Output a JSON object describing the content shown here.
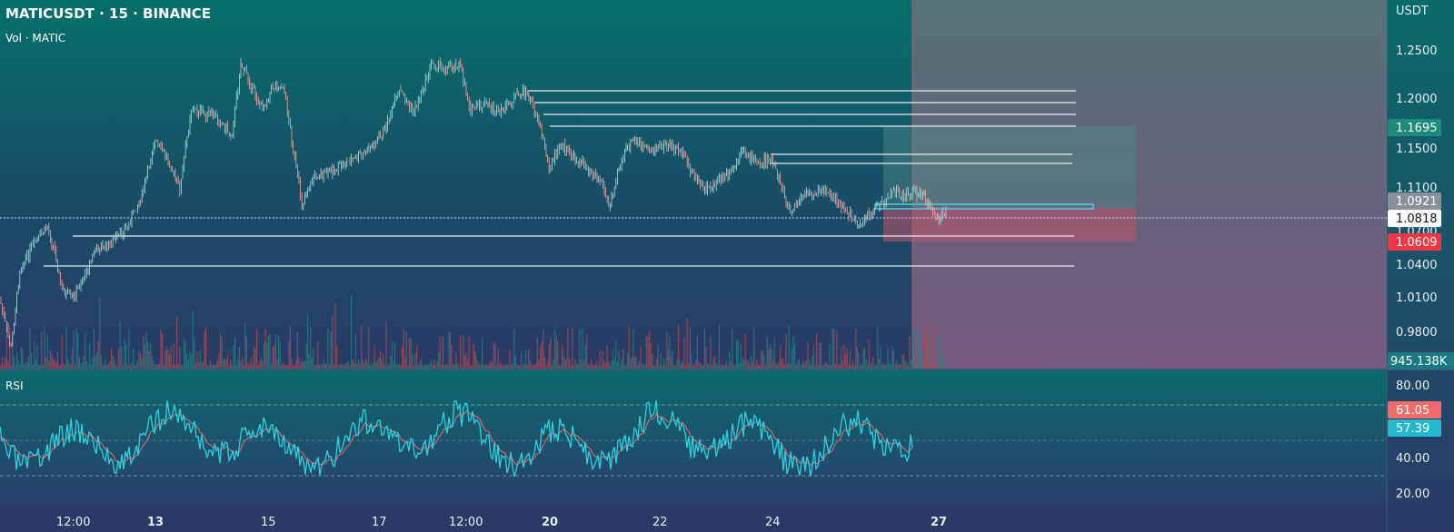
{
  "header": {
    "symbol_line": "MATICUSDT · 15 · BINANCE",
    "volume_label": "Vol · MATIC"
  },
  "price_axis": {
    "currency": "USDT",
    "ticks": [
      "1.2500",
      "1.2000",
      "1.1500",
      "1.1100",
      "1.0700",
      "1.0400",
      "1.0100",
      "0.9800"
    ],
    "badges": {
      "target": "1.1695",
      "entry": "1.0921",
      "current": "1.0818",
      "stop": "1.0609",
      "volume": "945.138K"
    }
  },
  "rsi_panel": {
    "label": "RSI",
    "ticks": [
      "80.00",
      "40.00",
      "20.00"
    ],
    "badges": {
      "rsi": "61.05",
      "signal": "57.39"
    }
  },
  "time_axis": {
    "labels": [
      "12:00",
      "13",
      "15",
      "17",
      "12:00",
      "20",
      "22",
      "24",
      "27"
    ],
    "bold": [
      false,
      true,
      false,
      false,
      false,
      true,
      false,
      false,
      true
    ]
  },
  "colors": {
    "up": "#26a69a",
    "down": "#ef5350",
    "target_badge": "#1e8c7a",
    "entry_badge": "#8a8f99",
    "stop_badge": "#f23645",
    "volume_badge": "#1a7a82",
    "rsi_line": "#2ad0e0",
    "rsi_signal": "#f06a6a",
    "signal_badge": "#f06a6a",
    "rsi_badge": "#22b8d0"
  }
}
